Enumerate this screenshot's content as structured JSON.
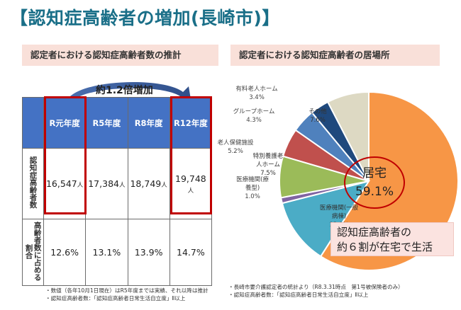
{
  "page": {
    "title": "【認知症高齢者の増加(長崎市)】",
    "left_heading": "認定者における認知症高齢者数の推計",
    "right_heading": "認定者における認知症高齢者の居場所",
    "increase_label": "約1.2倍増加",
    "callout_line1": "認知症高齢者の",
    "callout_line2": "約６割が在宅で生活",
    "left_notes": [
      "・数値（各年10月1日現在）はR5年度までは実績、それ以降は推計",
      "・認知症高齢者数：「認知症高齢者日常生活自立度」Ⅱ以上"
    ],
    "right_notes": [
      "・長崎市要介護認定者の統計より（R8.3.31時点　第1号被保険者のみ）",
      "・認知症高齢者数：「認知症高齢者日常生活自立度」Ⅱ以上"
    ],
    "colors": {
      "title": "#1a6f88",
      "header_blue": "#4472c4",
      "highlight_red": "#c00000"
    }
  },
  "chart_data": [
    {
      "type": "table",
      "columns": [
        "R元年度",
        "R5年度",
        "R8年度",
        "R12年度"
      ],
      "rows": [
        {
          "label": "認知症高齢者数",
          "values": [
            "16,547",
            "17,384",
            "18,749",
            "19,748"
          ],
          "unit": "人"
        },
        {
          "label": "高齢者数に占める割合",
          "values": [
            "12.6%",
            "13.1%",
            "13.9%",
            "14.7%"
          ]
        }
      ],
      "highlighted_columns": [
        "R元年度",
        "R12年度"
      ]
    },
    {
      "type": "pie",
      "slices": [
        {
          "label": "居宅",
          "value": 59.1,
          "pct_label": "59.1%",
          "color": "#f79646"
        },
        {
          "label": "医療機関(一般病棟)",
          "label_lines": [
            "医療機関(一般",
            "病棟)"
          ],
          "value": 12.0,
          "pct_label": "12.0%",
          "color": "#4bacc6"
        },
        {
          "label": "医療機関(療養型)",
          "label_lines": [
            "医療機関(療",
            "養型)"
          ],
          "value": 1.0,
          "pct_label": "1.0%",
          "color": "#8064a2"
        },
        {
          "label": "特別養護老人ホーム",
          "label_lines": [
            "特別養護老",
            "人ホーム"
          ],
          "value": 7.5,
          "pct_label": "7.5%",
          "color": "#9bbb59"
        },
        {
          "label": "老人保健施設",
          "label_lines": [
            "老人保健施設"
          ],
          "value": 5.2,
          "pct_label": "5.2%",
          "color": "#c0504d"
        },
        {
          "label": "グループホーム",
          "label_lines": [
            "グループホーム"
          ],
          "value": 4.3,
          "pct_label": "4.3%",
          "color": "#4f81bd"
        },
        {
          "label": "有料老人ホーム",
          "label_lines": [
            "有料老人ホーム"
          ],
          "value": 3.4,
          "pct_label": "3.4%",
          "color": "#1f497d"
        },
        {
          "label": "その他",
          "label_lines": [
            "その他"
          ],
          "value": 7.6,
          "pct_label": "7.6%",
          "color": "#ddd9c3"
        }
      ]
    }
  ]
}
